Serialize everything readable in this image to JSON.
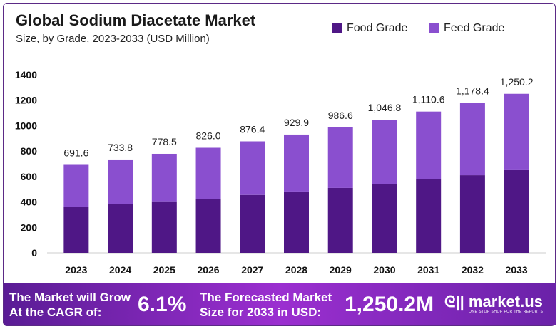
{
  "chart_data": {
    "type": "bar",
    "stacked": true,
    "title": "Global Sodium Diacetate Market",
    "subtitle": "Size, by Grade, 2023-2033 (USD Million)",
    "categories": [
      "2023",
      "2024",
      "2025",
      "2026",
      "2027",
      "2028",
      "2029",
      "2030",
      "2031",
      "2032",
      "2033"
    ],
    "series": [
      {
        "name": "Food Grade",
        "color": "#4f1786",
        "values": [
          360,
          381,
          405,
          425,
          455,
          482,
          510,
          543,
          577,
          610,
          650
        ]
      },
      {
        "name": "Feed Grade",
        "color": "#8a4fcf",
        "values": [
          331.6,
          352.8,
          373.5,
          401.0,
          421.4,
          447.9,
          476.6,
          503.8,
          533.6,
          568.4,
          600.2
        ]
      }
    ],
    "totals": [
      "691.6",
      "733.8",
      "778.5",
      "826.0",
      "876.4",
      "929.9",
      "986.6",
      "1,046.8",
      "1,110.6",
      "1,178.4",
      "1,250.2"
    ],
    "totals_values": [
      691.6,
      733.8,
      778.5,
      826.0,
      876.4,
      929.9,
      986.6,
      1046.8,
      1110.6,
      1178.4,
      1250.2
    ],
    "yticks": [
      0,
      200,
      400,
      600,
      800,
      1000,
      1200,
      1400
    ],
    "ylim": [
      0,
      1400
    ],
    "grid": false,
    "legend": "top-right"
  },
  "footer": {
    "cagr_text_1": "The Market will Grow",
    "cagr_text_2": "At the CAGR of:",
    "cagr_value": "6.1%",
    "forecast_text_1": "The Forecasted Market",
    "forecast_text_2": "Size for 2033 in USD:",
    "forecast_value": "1,250.2M",
    "logo": "market.us",
    "logo_tagline": "ONE STOP SHOP FOR THE REPORTS"
  }
}
